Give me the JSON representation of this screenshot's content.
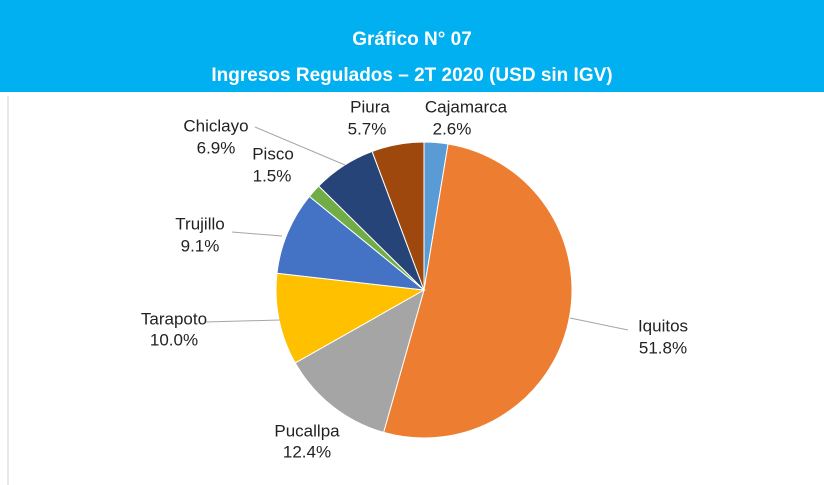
{
  "chart_data": {
    "type": "pie",
    "title": "Gráfico N° 07",
    "subtitle": "Ingresos Regulados – 2T 2020 (USD sin IGV)",
    "categories": [
      "Cajamarca",
      "Iquitos",
      "Pucallpa",
      "Tarapoto",
      "Trujillo",
      "Pisco",
      "Chiclayo",
      "Piura"
    ],
    "values": [
      2.6,
      51.8,
      12.4,
      10.0,
      9.1,
      1.5,
      6.9,
      5.7
    ],
    "value_labels": [
      "2.6%",
      "51.8%",
      "12.4%",
      "10.0%",
      "9.1%",
      "1.5%",
      "6.9%",
      "5.7%"
    ],
    "colors": [
      "#5B9BD5",
      "#ED7D31",
      "#A5A5A5",
      "#FFC000",
      "#4472C4",
      "#70AD47",
      "#264478",
      "#9E480E"
    ]
  }
}
